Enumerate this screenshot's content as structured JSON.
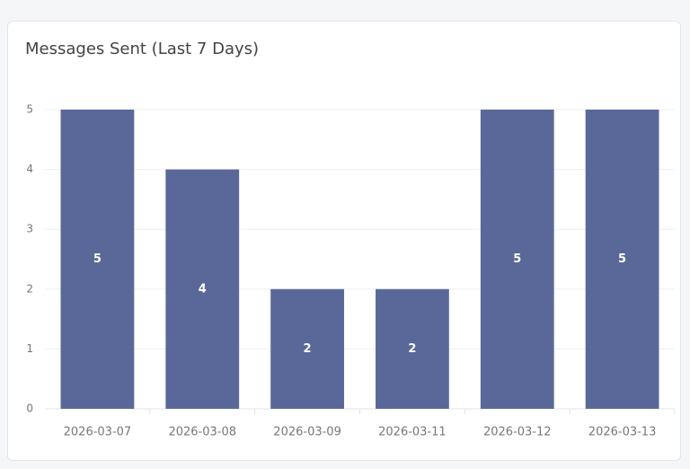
{
  "chart_data": {
    "type": "bar",
    "title": "Messages Sent (Last 7 Days)",
    "categories": [
      "2026-03-07",
      "2026-03-08",
      "2026-03-09",
      "2026-03-11",
      "2026-03-12",
      "2026-03-13"
    ],
    "values": [
      5,
      4,
      2,
      2,
      5,
      5
    ],
    "color": "#5a6899",
    "ylim": [
      0,
      5
    ],
    "yticks": [
      0,
      1,
      2,
      3,
      4,
      5
    ],
    "grid": true
  }
}
